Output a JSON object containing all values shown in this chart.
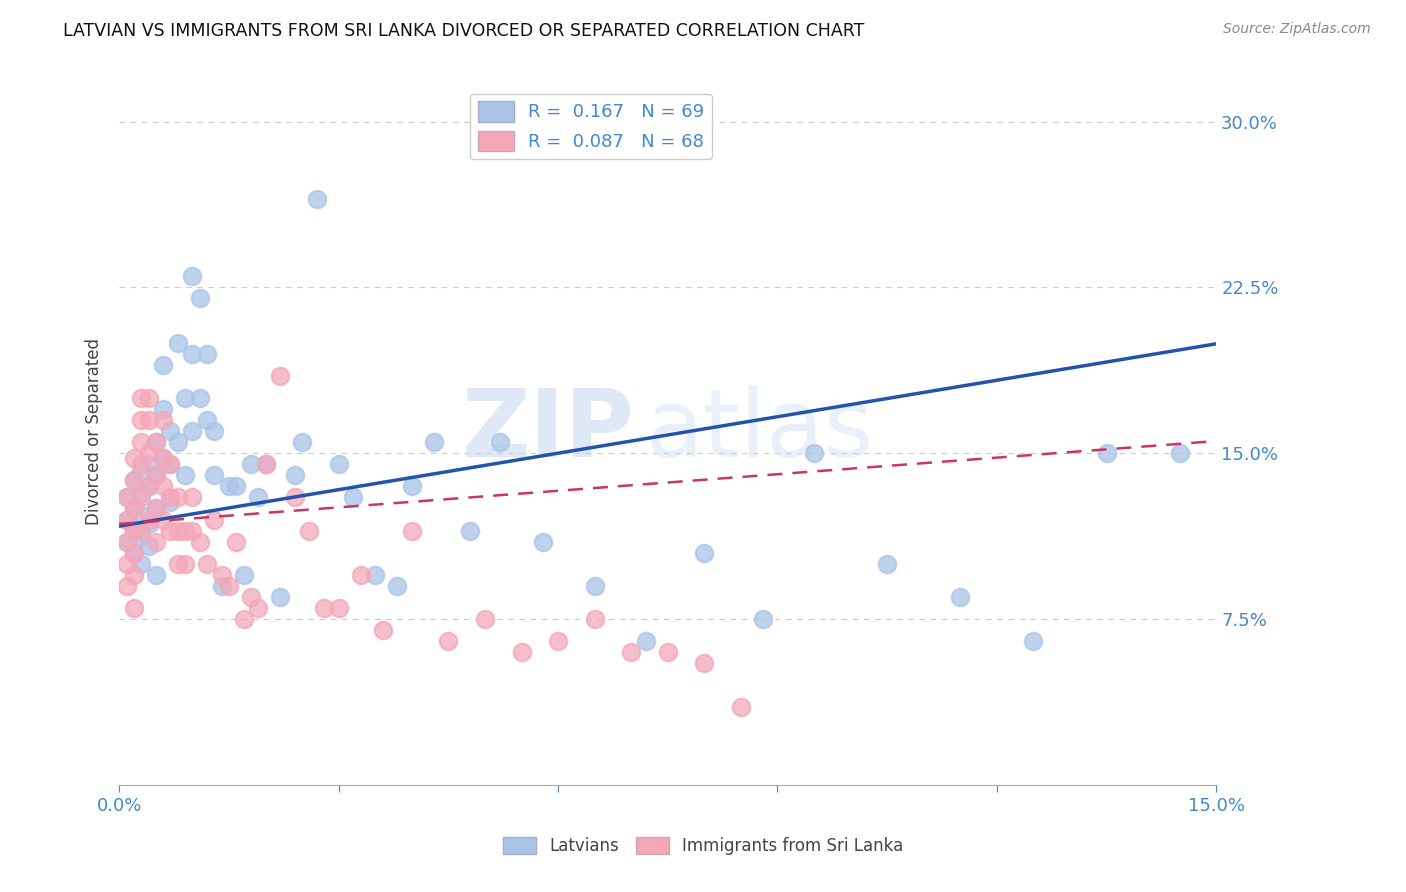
{
  "title": "LATVIAN VS IMMIGRANTS FROM SRI LANKA DIVORCED OR SEPARATED CORRELATION CHART",
  "source": "Source: ZipAtlas.com",
  "ylabel": "Divorced or Separated",
  "xlim": [
    0.0,
    0.15
  ],
  "ylim": [
    0.0,
    0.32
  ],
  "yticks": [
    0.075,
    0.15,
    0.225,
    0.3
  ],
  "ytick_labels": [
    "7.5%",
    "15.0%",
    "22.5%",
    "30.0%"
  ],
  "watermark_zip": "ZIP",
  "watermark_atlas": "atlas",
  "legend_entries": [
    {
      "label": "Latvians",
      "R": "0.167",
      "N": "69",
      "color": "#aac4e8"
    },
    {
      "label": "Immigrants from Sri Lanka",
      "R": "0.087",
      "N": "68",
      "color": "#f4a7b9"
    }
  ],
  "blue_scatter_x": [
    0.001,
    0.001,
    0.001,
    0.002,
    0.002,
    0.002,
    0.002,
    0.003,
    0.003,
    0.003,
    0.003,
    0.003,
    0.004,
    0.004,
    0.004,
    0.004,
    0.005,
    0.005,
    0.005,
    0.005,
    0.006,
    0.006,
    0.006,
    0.007,
    0.007,
    0.007,
    0.008,
    0.008,
    0.009,
    0.009,
    0.01,
    0.01,
    0.01,
    0.011,
    0.011,
    0.012,
    0.012,
    0.013,
    0.013,
    0.014,
    0.015,
    0.016,
    0.017,
    0.018,
    0.019,
    0.02,
    0.022,
    0.024,
    0.025,
    0.027,
    0.03,
    0.032,
    0.035,
    0.038,
    0.04,
    0.043,
    0.048,
    0.052,
    0.058,
    0.065,
    0.072,
    0.08,
    0.088,
    0.095,
    0.105,
    0.115,
    0.125,
    0.135,
    0.145
  ],
  "blue_scatter_y": [
    0.13,
    0.12,
    0.11,
    0.138,
    0.125,
    0.115,
    0.105,
    0.142,
    0.132,
    0.122,
    0.112,
    0.1,
    0.145,
    0.135,
    0.118,
    0.108,
    0.155,
    0.14,
    0.125,
    0.095,
    0.19,
    0.17,
    0.148,
    0.16,
    0.145,
    0.128,
    0.2,
    0.155,
    0.175,
    0.14,
    0.23,
    0.195,
    0.16,
    0.22,
    0.175,
    0.195,
    0.165,
    0.16,
    0.14,
    0.09,
    0.135,
    0.135,
    0.095,
    0.145,
    0.13,
    0.145,
    0.085,
    0.14,
    0.155,
    0.265,
    0.145,
    0.13,
    0.095,
    0.09,
    0.135,
    0.155,
    0.115,
    0.155,
    0.11,
    0.09,
    0.065,
    0.105,
    0.075,
    0.15,
    0.1,
    0.085,
    0.065,
    0.15,
    0.15
  ],
  "pink_scatter_x": [
    0.001,
    0.001,
    0.001,
    0.001,
    0.001,
    0.002,
    0.002,
    0.002,
    0.002,
    0.002,
    0.002,
    0.002,
    0.003,
    0.003,
    0.003,
    0.003,
    0.003,
    0.003,
    0.004,
    0.004,
    0.004,
    0.004,
    0.004,
    0.005,
    0.005,
    0.005,
    0.005,
    0.006,
    0.006,
    0.006,
    0.006,
    0.007,
    0.007,
    0.007,
    0.008,
    0.008,
    0.008,
    0.009,
    0.009,
    0.01,
    0.01,
    0.011,
    0.012,
    0.013,
    0.014,
    0.015,
    0.016,
    0.017,
    0.018,
    0.019,
    0.02,
    0.022,
    0.024,
    0.026,
    0.028,
    0.03,
    0.033,
    0.036,
    0.04,
    0.045,
    0.05,
    0.055,
    0.06,
    0.065,
    0.07,
    0.075,
    0.08,
    0.085
  ],
  "pink_scatter_y": [
    0.13,
    0.12,
    0.11,
    0.1,
    0.09,
    0.148,
    0.138,
    0.125,
    0.115,
    0.105,
    0.095,
    0.08,
    0.175,
    0.165,
    0.155,
    0.145,
    0.13,
    0.115,
    0.175,
    0.165,
    0.15,
    0.135,
    0.12,
    0.155,
    0.14,
    0.125,
    0.11,
    0.165,
    0.148,
    0.135,
    0.12,
    0.145,
    0.13,
    0.115,
    0.13,
    0.115,
    0.1,
    0.115,
    0.1,
    0.13,
    0.115,
    0.11,
    0.1,
    0.12,
    0.095,
    0.09,
    0.11,
    0.075,
    0.085,
    0.08,
    0.145,
    0.185,
    0.13,
    0.115,
    0.08,
    0.08,
    0.095,
    0.07,
    0.115,
    0.065,
    0.075,
    0.06,
    0.065,
    0.075,
    0.06,
    0.06,
    0.055,
    0.035
  ],
  "blue_color": "#aac4e8",
  "pink_color": "#f4a7b9",
  "blue_line_color": "#2255aa",
  "pink_line_color": "#cc3366",
  "grid_color": "#cccccc",
  "axis_label_color": "#4488cc",
  "background_color": "#ffffff",
  "blue_line_slope": 0.55,
  "blue_line_intercept": 0.117,
  "pink_line_slope": 0.25,
  "pink_line_intercept": 0.118
}
